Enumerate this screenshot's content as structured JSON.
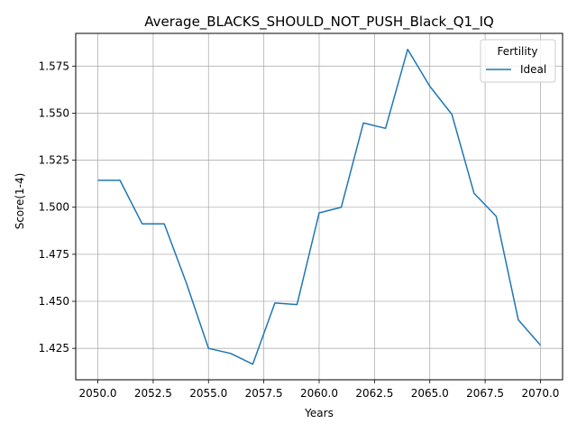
{
  "chart_data": {
    "type": "line",
    "title": "Average_BLACKS_SHOULD_NOT_PUSH_Black_Q1_IQ",
    "xlabel": "Years",
    "ylabel": "Score(1-4)",
    "xlim": [
      2049.0,
      2071.0
    ],
    "ylim": [
      1.4083,
      1.5924
    ],
    "x_ticks": [
      "2050.0",
      "2052.5",
      "2055.0",
      "2057.5",
      "2060.0",
      "2062.5",
      "2065.0",
      "2067.5",
      "2070.0"
    ],
    "x_tick_values": [
      2050.0,
      2052.5,
      2055.0,
      2057.5,
      2060.0,
      2062.5,
      2065.0,
      2067.5,
      2070.0
    ],
    "y_ticks": [
      "1.425",
      "1.450",
      "1.475",
      "1.500",
      "1.525",
      "1.550",
      "1.575"
    ],
    "y_tick_values": [
      1.425,
      1.45,
      1.475,
      1.5,
      1.525,
      1.55,
      1.575
    ],
    "grid": true,
    "legend": {
      "title": "Fertility",
      "placement": "top-right"
    },
    "series": [
      {
        "name": "Ideal",
        "color": "#1f77b4",
        "x": [
          2050,
          2051,
          2052,
          2053,
          2054,
          2055,
          2056,
          2057,
          2058,
          2059,
          2060,
          2061,
          2062,
          2063,
          2064,
          2065,
          2066,
          2067,
          2068,
          2069,
          2070
        ],
        "values": [
          1.5143,
          1.5143,
          1.4912,
          1.4912,
          1.4597,
          1.425,
          1.4223,
          1.4166,
          1.4491,
          1.4483,
          1.497,
          1.5,
          1.5448,
          1.5419,
          1.5839,
          1.5643,
          1.5493,
          1.5074,
          1.4952,
          1.4401,
          1.4267
        ]
      }
    ]
  }
}
